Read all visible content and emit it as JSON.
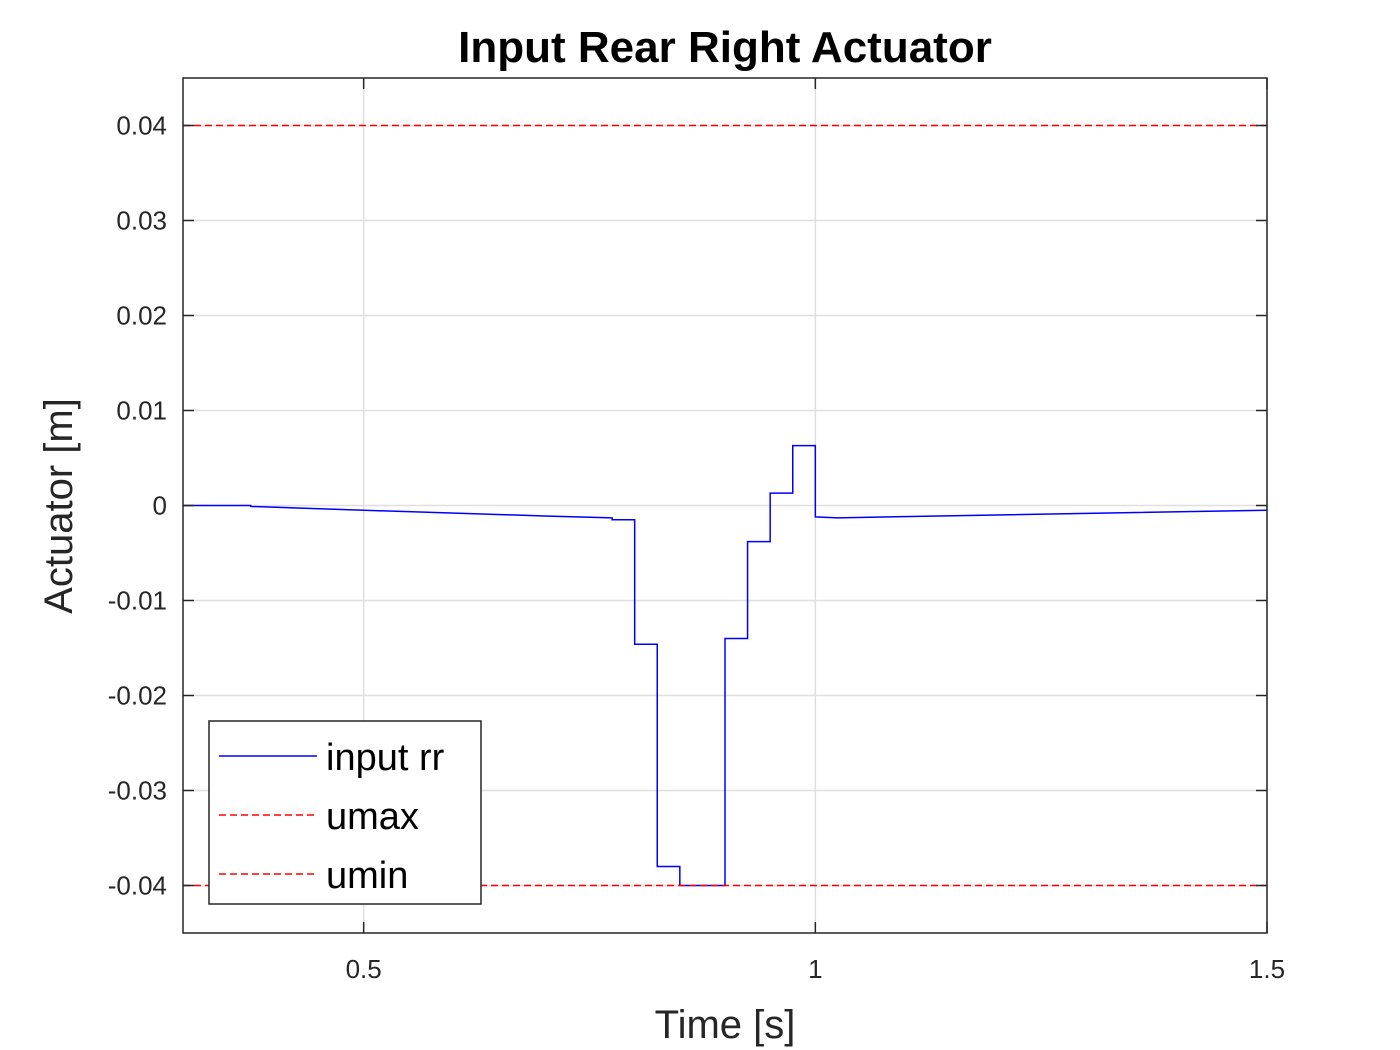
{
  "chart_data": {
    "type": "line",
    "title": "Input Rear Right Actuator",
    "xlabel": "Time [s]",
    "ylabel": "Actuator [m]",
    "xlim": [
      0.3,
      1.5
    ],
    "ylim": [
      -0.045,
      0.045
    ],
    "xticks": [
      0.5,
      1,
      1.5
    ],
    "xtick_labels": [
      "0.5",
      "1",
      "1.5"
    ],
    "yticks": [
      0.04,
      0.03,
      0.02,
      0.01,
      0,
      -0.01,
      -0.02,
      -0.03,
      -0.04
    ],
    "ytick_labels": [
      "0.04",
      "0.03",
      "0.02",
      "0.01",
      "0",
      "-0.01",
      "-0.02",
      "-0.03",
      "-0.04"
    ],
    "grid": true,
    "legend_position": "bottom-left",
    "series": [
      {
        "name": "input rr",
        "color": "#0000ff",
        "style": "solid",
        "x": [
          0.3,
          0.375,
          0.375,
          0.5,
          0.7,
          0.775,
          0.775,
          0.8,
          0.8,
          0.825,
          0.825,
          0.85,
          0.85,
          0.875,
          0.875,
          0.9,
          0.9,
          0.925,
          0.925,
          0.95,
          0.95,
          0.975,
          0.975,
          1.0,
          1.0,
          1.025,
          1.2,
          1.5
        ],
        "y": [
          0.0,
          0.0,
          -0.0001,
          -0.0005,
          -0.0011,
          -0.0013,
          -0.0015,
          -0.0015,
          -0.0146,
          -0.0146,
          -0.038,
          -0.038,
          -0.04,
          -0.04,
          -0.04,
          -0.04,
          -0.014,
          -0.014,
          -0.0038,
          -0.0038,
          0.0013,
          0.0013,
          0.0063,
          0.0063,
          -0.0012,
          -0.0013,
          -0.001,
          -0.0005
        ]
      },
      {
        "name": "umax",
        "color": "#ff0000",
        "style": "dashed",
        "x": [
          0.3,
          1.5
        ],
        "y": [
          0.04,
          0.04
        ]
      },
      {
        "name": "umin",
        "color": "#ff0000",
        "style": "dashed",
        "x": [
          0.3,
          1.5
        ],
        "y": [
          -0.04,
          -0.04
        ]
      }
    ]
  }
}
